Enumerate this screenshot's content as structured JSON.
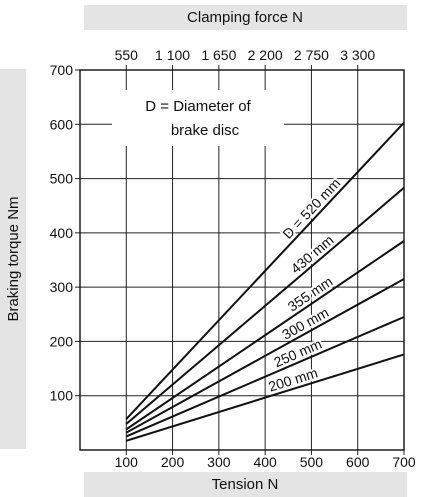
{
  "chart_data": {
    "type": "line",
    "x_axis_bottom": {
      "label": "Tension N",
      "ticks": [
        100,
        200,
        300,
        400,
        500,
        600,
        700
      ],
      "range": [
        0,
        700
      ]
    },
    "x_axis_top": {
      "label": "Clamping force N",
      "ticks": [
        550,
        1100,
        1650,
        2200,
        2750,
        3300
      ],
      "tick_labels": [
        "550",
        "1 100",
        "1 650",
        "2 200",
        "2 750",
        "3 300"
      ],
      "range": [
        0,
        3850
      ]
    },
    "y_axis": {
      "label": "Braking torque Nm",
      "ticks": [
        100,
        200,
        300,
        400,
        500,
        600,
        700
      ],
      "range": [
        0,
        700
      ]
    },
    "grid": true,
    "annotation": [
      "D = Diameter of",
      "brake disc"
    ],
    "series": [
      {
        "name": "D = 520 mm",
        "x": [
          100,
          700
        ],
        "y": [
          57,
          603
        ]
      },
      {
        "name": "430 mm",
        "x": [
          100,
          700
        ],
        "y": [
          48,
          483
        ]
      },
      {
        "name": "355 mm",
        "x": [
          100,
          700
        ],
        "y": [
          38,
          385
        ]
      },
      {
        "name": "300 mm",
        "x": [
          100,
          700
        ],
        "y": [
          32,
          315
        ]
      },
      {
        "name": "250 mm",
        "x": [
          100,
          700
        ],
        "y": [
          25,
          245
        ]
      },
      {
        "name": "200 mm",
        "x": [
          100,
          700
        ],
        "y": [
          17,
          176
        ]
      }
    ]
  }
}
